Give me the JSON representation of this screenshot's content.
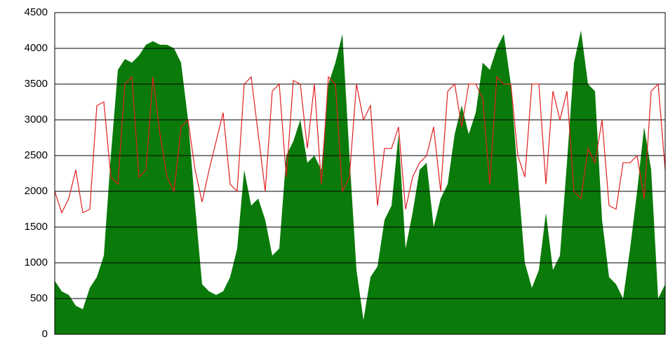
{
  "chart_data": {
    "type": "area",
    "x": [
      0,
      1,
      2,
      3,
      4,
      5,
      6,
      7,
      8,
      9,
      10,
      11,
      12,
      13,
      14,
      15,
      16,
      17,
      18,
      19,
      20,
      21,
      22,
      23,
      24,
      25,
      26,
      27,
      28,
      29,
      30,
      31,
      32,
      33,
      34,
      35,
      36,
      37,
      38,
      39,
      40,
      41,
      42,
      43,
      44,
      45,
      46,
      47,
      48,
      49,
      50,
      51,
      52,
      53,
      54,
      55,
      56,
      57,
      58,
      59,
      60,
      61,
      62,
      63,
      64,
      65,
      66,
      67,
      68,
      69,
      70,
      71,
      72,
      73,
      74,
      75,
      76,
      77,
      78,
      79,
      80,
      81,
      82,
      83,
      84,
      85,
      86,
      87
    ],
    "xlim": [
      0,
      87
    ],
    "ylim": [
      0,
      4500
    ],
    "yticks": [
      0,
      500,
      1000,
      1500,
      2000,
      2500,
      3000,
      3500,
      4000,
      4500
    ],
    "grid": true,
    "series": [
      {
        "type": "area",
        "color": "#0a7a0a",
        "values": [
          750,
          600,
          550,
          400,
          350,
          650,
          800,
          1100,
          2500,
          3700,
          3850,
          3800,
          3900,
          4050,
          4100,
          4050,
          4050,
          4000,
          3800,
          3000,
          1800,
          700,
          600,
          550,
          600,
          800,
          1200,
          2300,
          1800,
          1900,
          1600,
          1100,
          1200,
          2500,
          2700,
          3000,
          2400,
          2500,
          2300,
          3500,
          3800,
          4200,
          2500,
          900,
          200,
          800,
          950,
          1600,
          1800,
          2800,
          1200,
          1700,
          2300,
          2400,
          1500,
          1900,
          2100,
          2800,
          3200,
          2800,
          3100,
          3800,
          3700,
          4000,
          4200,
          3500,
          2200,
          1000,
          650,
          900,
          1700,
          900,
          1100,
          2400,
          3800,
          4250,
          3500,
          3400,
          1600,
          800,
          700,
          500,
          1200,
          2000,
          2900,
          2300,
          500,
          700
        ]
      },
      {
        "type": "line",
        "color": "#e02020",
        "values": [
          2000,
          1700,
          1900,
          2300,
          1700,
          1750,
          3200,
          3250,
          2200,
          2100,
          3500,
          3600,
          2200,
          2300,
          3600,
          2800,
          2200,
          2000,
          2900,
          3000,
          2300,
          1850,
          2300,
          2700,
          3100,
          2100,
          2000,
          3500,
          3600,
          2800,
          2000,
          3400,
          3500,
          2200,
          3550,
          3500,
          2600,
          3500,
          2100,
          3600,
          3500,
          2000,
          2200,
          3500,
          3000,
          3200,
          1800,
          2600,
          2600,
          2900,
          1750,
          2200,
          2400,
          2500,
          2900,
          2000,
          3400,
          3500,
          2900,
          3500,
          3500,
          3300,
          2100,
          3600,
          3500,
          3500,
          2500,
          2200,
          3500,
          3500,
          2100,
          3400,
          3000,
          3400,
          2000,
          1900,
          2600,
          2400,
          3000,
          1800,
          1750,
          2400,
          2400,
          2500,
          1900,
          3400,
          3500,
          2300
        ]
      }
    ]
  }
}
